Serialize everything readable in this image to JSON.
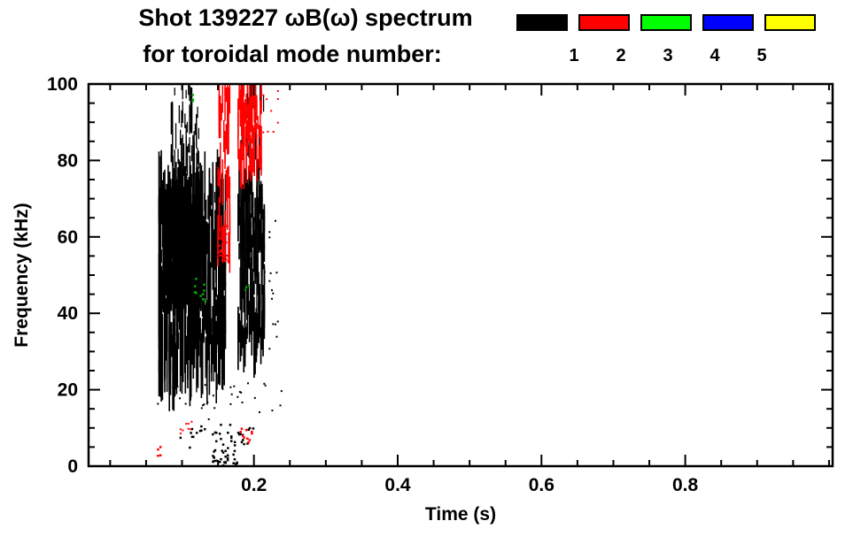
{
  "header": {
    "title": "Shot 139227 ωB(ω) spectrum",
    "subtitle": "for toroidal mode number:"
  },
  "legend": {
    "items": [
      {
        "label": "1",
        "color": "#000000"
      },
      {
        "label": "2",
        "color": "#ff0000"
      },
      {
        "label": "3",
        "color": "#00ff00"
      },
      {
        "label": "4",
        "color": "#0000ff"
      },
      {
        "label": "5",
        "color": "#ffff00"
      }
    ]
  },
  "chart_data": {
    "type": "scatter",
    "title": "Shot 139227 ωB(ω) spectrum for toroidal mode number",
    "xlabel": "Time (s)",
    "ylabel": "Frequency (kHz)",
    "xlim": [
      -0.03,
      1.005
    ],
    "ylim": [
      0,
      100
    ],
    "xticks": {
      "major": [
        0.2,
        0.4,
        0.6,
        0.8
      ],
      "labels": [
        "0.2",
        "0.4",
        "0.6",
        "0.8"
      ],
      "minor_step": 0.05
    },
    "yticks": {
      "major": [
        0,
        20,
        40,
        60,
        80,
        100
      ],
      "labels": [
        "0",
        "20",
        "40",
        "60",
        "80",
        "100"
      ],
      "minor_step": 5
    },
    "grid": false,
    "legend_position": "top-right",
    "frame_color": "#000000",
    "note": "Spectrogram-like scatter: bursts of mode activity between t=0.06 s and t=0.24 s, mostly mode 1 (black) at 20-78 kHz, mode 2 (red) at 75-100 kHz near t=0.15-0.21 s, sparse mode 3 (green) specks; no mode 4 or 5 points visible.",
    "series": [
      {
        "name": "1",
        "mode": 1,
        "color": "#000000",
        "clusters": [
          {
            "type": "streaks",
            "t": [
              0.068,
              0.162
            ],
            "f": [
              24,
              74
            ],
            "n": 420,
            "len": [
              3,
              22
            ],
            "w": 1.6
          },
          {
            "type": "streaks",
            "t": [
              0.074,
              0.128
            ],
            "f": [
              44,
              70
            ],
            "n": 260,
            "len": [
              3,
              12
            ],
            "w": 2.0
          },
          {
            "type": "streaks",
            "t": [
              0.07,
              0.125
            ],
            "f": [
              35,
              65
            ],
            "n": 40,
            "len": [
              20,
              45
            ],
            "w": 1.4
          },
          {
            "type": "streaks",
            "t": [
              0.085,
              0.128
            ],
            "f": [
              72,
              100
            ],
            "n": 70,
            "len": [
              2,
              9
            ],
            "w": 1.3
          },
          {
            "type": "streaks",
            "t": [
              0.128,
              0.16
            ],
            "f": [
              22,
              72
            ],
            "n": 50,
            "len": [
              2,
              7
            ],
            "w": 1.3
          },
          {
            "type": "streaks",
            "t": [
              0.178,
              0.216
            ],
            "f": [
              28,
              75
            ],
            "n": 170,
            "len": [
              3,
              13
            ],
            "w": 1.7
          },
          {
            "type": "streaks",
            "t": [
              0.18,
              0.212
            ],
            "f": [
              40,
              70
            ],
            "n": 25,
            "len": [
              15,
              35
            ],
            "w": 1.3
          },
          {
            "type": "streaks",
            "t": [
              0.182,
              0.215
            ],
            "f": [
              75,
              100
            ],
            "n": 30,
            "len": [
              2,
              8
            ],
            "w": 1.2
          },
          {
            "type": "dots",
            "t": [
              0.098,
              0.212
            ],
            "f": [
              4,
              11
            ],
            "n": 40,
            "s": 2.5
          },
          {
            "type": "dots",
            "t": [
              0.143,
              0.178
            ],
            "f": [
              0,
              4
            ],
            "n": 28,
            "s": 2.5
          },
          {
            "type": "dots",
            "t": [
              0.06,
              0.24
            ],
            "f": [
              12,
              22
            ],
            "n": 30,
            "s": 2
          },
          {
            "type": "dots",
            "t": [
              0.215,
              0.235
            ],
            "f": [
              30,
              65
            ],
            "n": 15,
            "s": 2
          }
        ]
      },
      {
        "name": "2",
        "mode": 2,
        "color": "#ff0000",
        "clusters": [
          {
            "type": "streaks",
            "t": [
              0.15,
              0.168
            ],
            "f": [
              55,
              100
            ],
            "n": 60,
            "len": [
              3,
              10
            ],
            "w": 1.5
          },
          {
            "type": "streaks",
            "t": [
              0.178,
              0.212
            ],
            "f": [
              76,
              100
            ],
            "n": 80,
            "len": [
              3,
              10
            ],
            "w": 1.5
          },
          {
            "type": "streaks",
            "t": [
              0.185,
              0.205
            ],
            "f": [
              84,
              97
            ],
            "n": 30,
            "len": [
              2,
              6
            ],
            "w": 1.6
          },
          {
            "type": "dots",
            "t": [
              0.152,
              0.166
            ],
            "f": [
              52,
              64
            ],
            "n": 20,
            "s": 2.5
          },
          {
            "type": "dots",
            "t": [
              0.18,
              0.205
            ],
            "f": [
              6,
              10
            ],
            "n": 10,
            "s": 2.5
          },
          {
            "type": "dots",
            "t": [
              0.065,
              0.075
            ],
            "f": [
              2,
              5
            ],
            "n": 4,
            "s": 2.5
          },
          {
            "type": "dots",
            "t": [
              0.095,
              0.115
            ],
            "f": [
              7,
              12
            ],
            "n": 8,
            "s": 2
          },
          {
            "type": "dots",
            "t": [
              0.21,
              0.235
            ],
            "f": [
              85,
              100
            ],
            "n": 10,
            "s": 2
          }
        ]
      },
      {
        "name": "3",
        "mode": 3,
        "color": "#00aa00",
        "clusters": [
          {
            "type": "dots",
            "t": [
              0.118,
              0.134
            ],
            "f": [
              43,
              50
            ],
            "n": 10,
            "s": 2.5
          },
          {
            "type": "dots",
            "t": [
              0.112,
              0.118
            ],
            "f": [
              94,
              98
            ],
            "n": 3,
            "s": 2.5
          },
          {
            "type": "dots",
            "t": [
              0.188,
              0.196
            ],
            "f": [
              44,
              48
            ],
            "n": 4,
            "s": 2
          }
        ]
      },
      {
        "name": "4",
        "mode": 4,
        "color": "#0000ff",
        "clusters": []
      },
      {
        "name": "5",
        "mode": 5,
        "color": "#ffff00",
        "clusters": []
      }
    ]
  }
}
